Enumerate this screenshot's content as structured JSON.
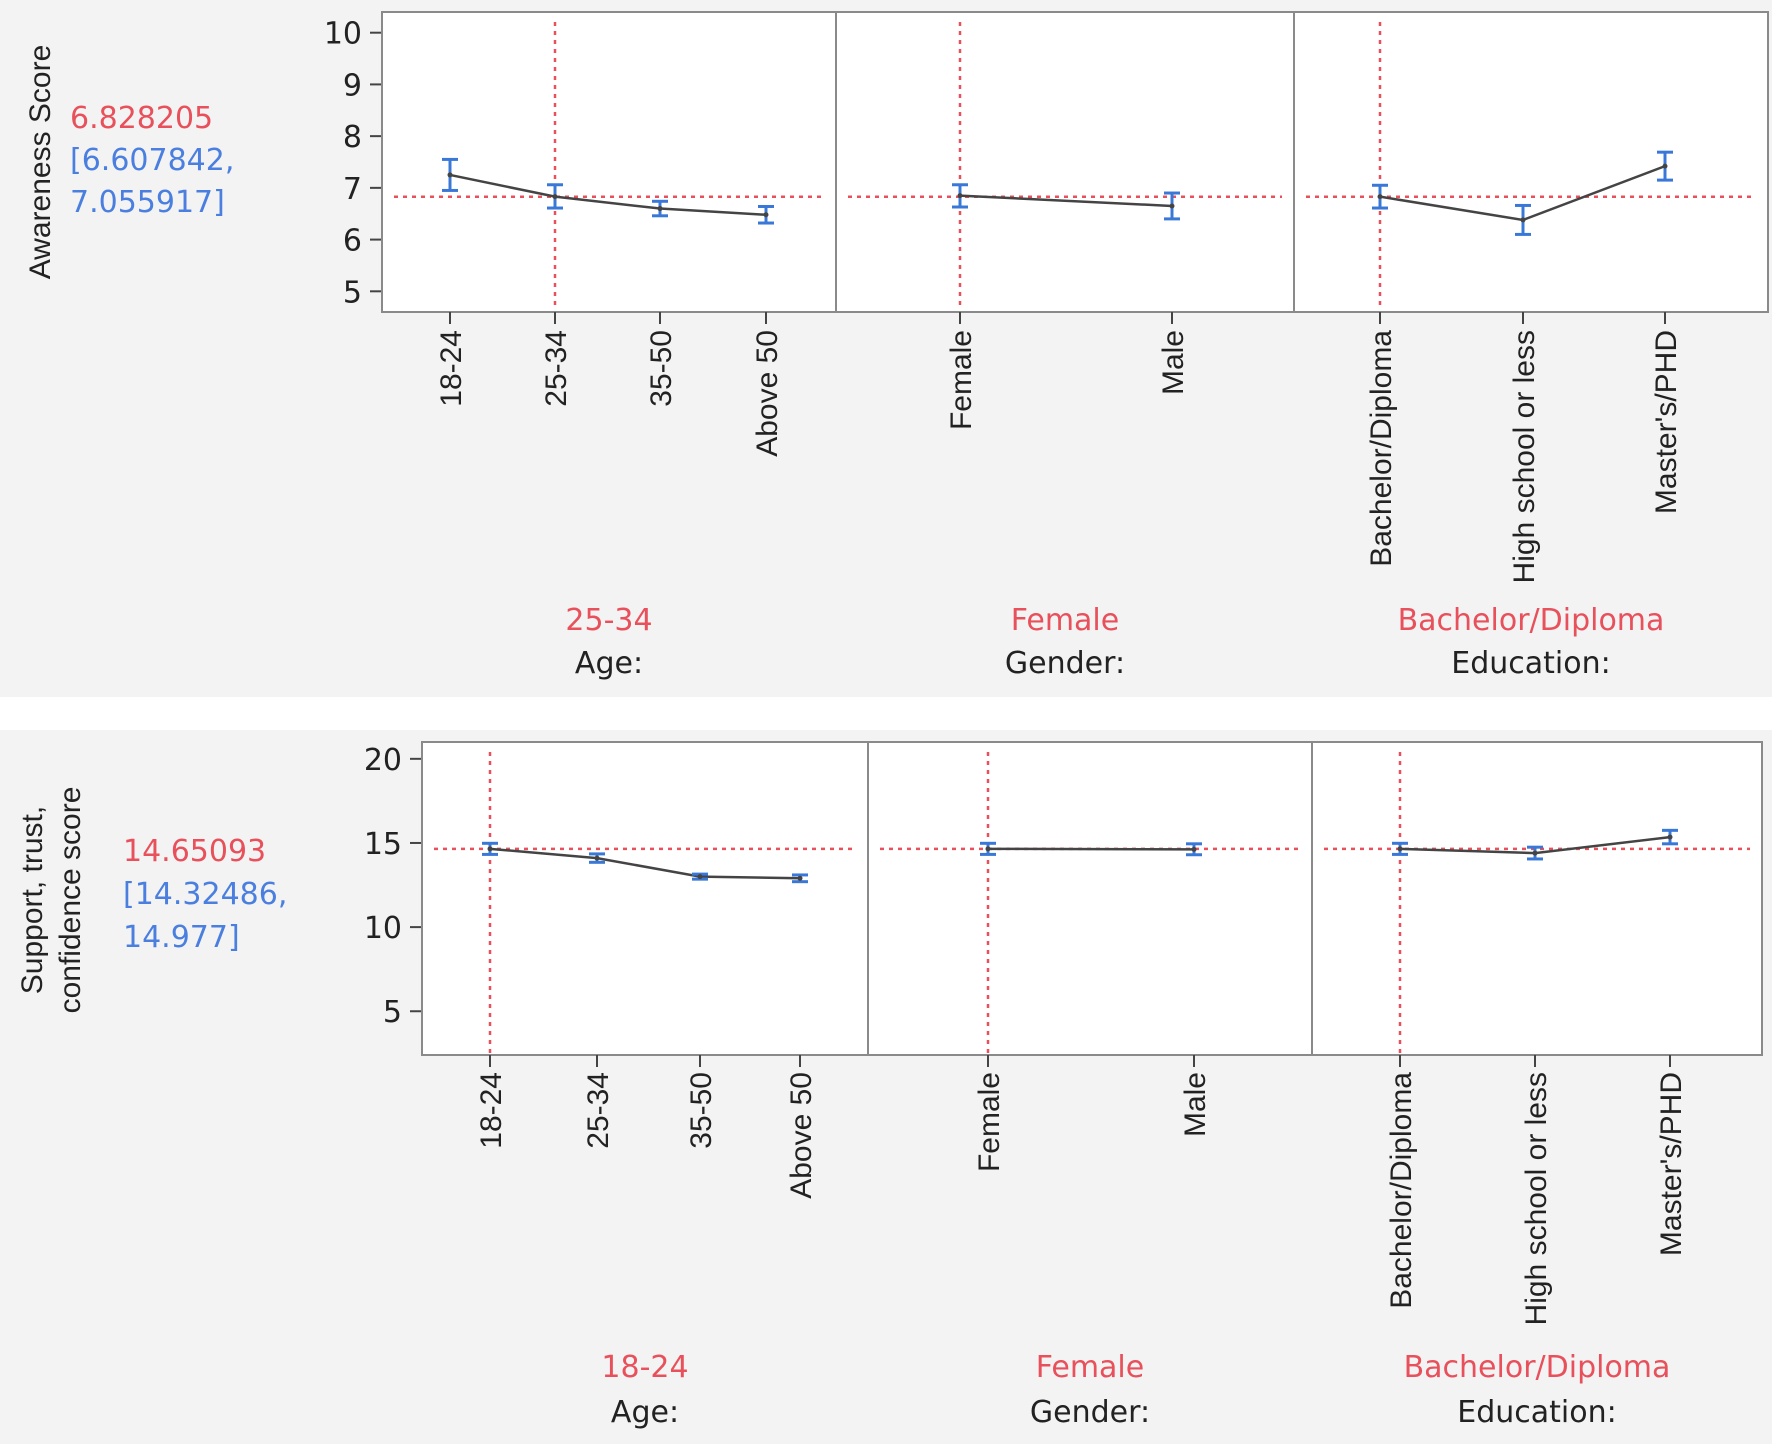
{
  "colors": {
    "background": "#f3f3f3",
    "frame": "#8a8a8a",
    "line": "#444444",
    "error_bar": "#3a78d8",
    "reference": "#e8505b",
    "prediction": "#e8505b",
    "interval": "#4a7fe0"
  },
  "chart_data": [
    {
      "type": "line",
      "title": "",
      "ylabel": "Awareness Score",
      "ylim": [
        4.6,
        10.4
      ],
      "yticks": [
        5,
        6,
        7,
        8,
        9,
        10
      ],
      "prediction": "6.828205",
      "interval_low": "[6.607842,",
      "interval_high": "7.055917]",
      "reference_y": 6.828205,
      "panels": [
        {
          "factor": "Age:",
          "current": "25-34",
          "current_index": 1,
          "categories": [
            "18-24",
            "25-34",
            "35-50",
            "Above 50"
          ],
          "values": [
            7.25,
            6.83,
            6.6,
            6.48
          ],
          "lower": [
            6.95,
            6.61,
            6.46,
            6.32
          ],
          "upper": [
            7.55,
            7.06,
            6.74,
            6.64
          ]
        },
        {
          "factor": "Gender:",
          "current": "Female",
          "current_index": 0,
          "categories": [
            "Female",
            "Male"
          ],
          "values": [
            6.85,
            6.65
          ],
          "lower": [
            6.63,
            6.4
          ],
          "upper": [
            7.06,
            6.9
          ]
        },
        {
          "factor": "Education:",
          "current": "Bachelor/Diploma",
          "current_index": 0,
          "categories": [
            "Bachelor/Diploma",
            "High school or less",
            "Master's/PHD"
          ],
          "values": [
            6.83,
            6.38,
            7.42
          ],
          "lower": [
            6.61,
            6.1,
            7.15
          ],
          "upper": [
            7.05,
            6.66,
            7.69
          ]
        }
      ]
    },
    {
      "type": "line",
      "title": "",
      "ylabel_lines": [
        "Support, trust,",
        "confidence score"
      ],
      "ylim": [
        2.4,
        21.0
      ],
      "yticks": [
        5,
        10,
        15,
        20
      ],
      "prediction": "14.65093",
      "interval_low": "[14.32486,",
      "interval_high": "14.977]",
      "reference_y": 14.65093,
      "panels": [
        {
          "factor": "Age:",
          "current": "18-24",
          "current_index": 0,
          "categories": [
            "18-24",
            "25-34",
            "35-50",
            "Above 50"
          ],
          "values": [
            14.65,
            14.1,
            13.0,
            12.9
          ],
          "lower": [
            14.32,
            13.85,
            12.85,
            12.7
          ],
          "upper": [
            14.98,
            14.35,
            13.15,
            13.1
          ]
        },
        {
          "factor": "Gender:",
          "current": "Female",
          "current_index": 0,
          "categories": [
            "Female",
            "Male"
          ],
          "values": [
            14.65,
            14.62
          ],
          "lower": [
            14.32,
            14.3
          ],
          "upper": [
            14.98,
            14.95
          ]
        },
        {
          "factor": "Education:",
          "current": "Bachelor/Diploma",
          "current_index": 0,
          "categories": [
            "Bachelor/Diploma",
            "High school or less",
            "Master's/PHD"
          ],
          "values": [
            14.65,
            14.4,
            15.35
          ],
          "lower": [
            14.32,
            14.05,
            14.95
          ],
          "upper": [
            14.98,
            14.75,
            15.75
          ]
        }
      ]
    }
  ]
}
